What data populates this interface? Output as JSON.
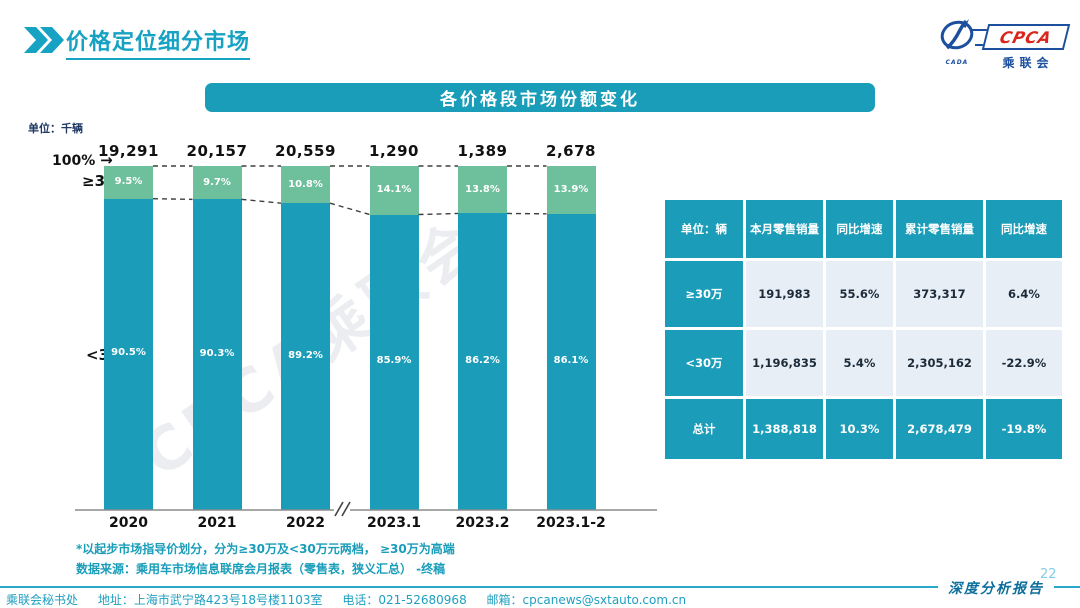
{
  "header": {
    "title": "价格定位细分市场",
    "logo": {
      "acronym": "CPCA",
      "name_cn": "乘联会",
      "emblem_text": "CADA"
    }
  },
  "banner": {
    "title": "各价格段市场份额变化"
  },
  "chart_data": {
    "type": "bar",
    "stacked": true,
    "title": "各价格段市场份额变化",
    "unit_label": "单位：千辆",
    "axis_top_label": "100%",
    "ylim": [
      0,
      100
    ],
    "categories": [
      "2020",
      "2021",
      "2022",
      "2023.1",
      "2023.2",
      "2023.1-2"
    ],
    "totals": [
      "19,291",
      "20,157",
      "20,559",
      "1,290",
      "1,389",
      "2,678"
    ],
    "series": [
      {
        "name": "≥30万",
        "values": [
          9.5,
          9.7,
          10.8,
          14.1,
          13.8,
          13.9
        ],
        "color": "#6ebf9c"
      },
      {
        "name": "<30万",
        "values": [
          90.5,
          90.3,
          89.2,
          85.9,
          86.2,
          86.1
        ],
        "color": "#1b9cb9"
      }
    ],
    "axis_break_after": "2022",
    "legend_position": "left-axis-labels",
    "grid": false
  },
  "footnotes": [
    "*以起步市场指导价划分，分为≥30万及<30万元两档， ≥30万为高端",
    "数据来源：乘用车市场信息联席会月报表（零售表，狭义汇总） -终稿"
  ],
  "table": {
    "headers": [
      "单位：辆",
      "本月零售销量",
      "同比增速",
      "累计零售销量",
      "同比增速"
    ],
    "rows": [
      {
        "label": "≥30万",
        "cells": [
          "191,983",
          "55.6%",
          "373,317",
          "6.4%"
        ],
        "highlight": false
      },
      {
        "label": "<30万",
        "cells": [
          "1,196,835",
          "5.4%",
          "2,305,162",
          "-22.9%"
        ],
        "highlight": false
      },
      {
        "label": "总计",
        "cells": [
          "1,388,818",
          "10.3%",
          "2,678,479",
          "-19.8%"
        ],
        "highlight": true
      }
    ]
  },
  "watermark": "CPCA乘联会",
  "footer": {
    "secretariat": "乘联会秘书处",
    "address": "地址：上海市武宁路423号18号楼1103室",
    "phone": "电话：021-52680968",
    "email": "邮箱：cpcanews@sxtauto.com.cn",
    "page_number": "22",
    "report_label": "深度分析报告"
  },
  "colors": {
    "teal_main": "#1b9cb9",
    "green_segment": "#6ebf9c",
    "banner": "#199db9",
    "title_text": "#17a2c3",
    "table_light_cell": "#e7eef6",
    "navy_text": "#1f3864",
    "logo_blue": "#1c4f9e",
    "logo_red": "#d9261c",
    "footer_text": "#1f9fc0"
  }
}
